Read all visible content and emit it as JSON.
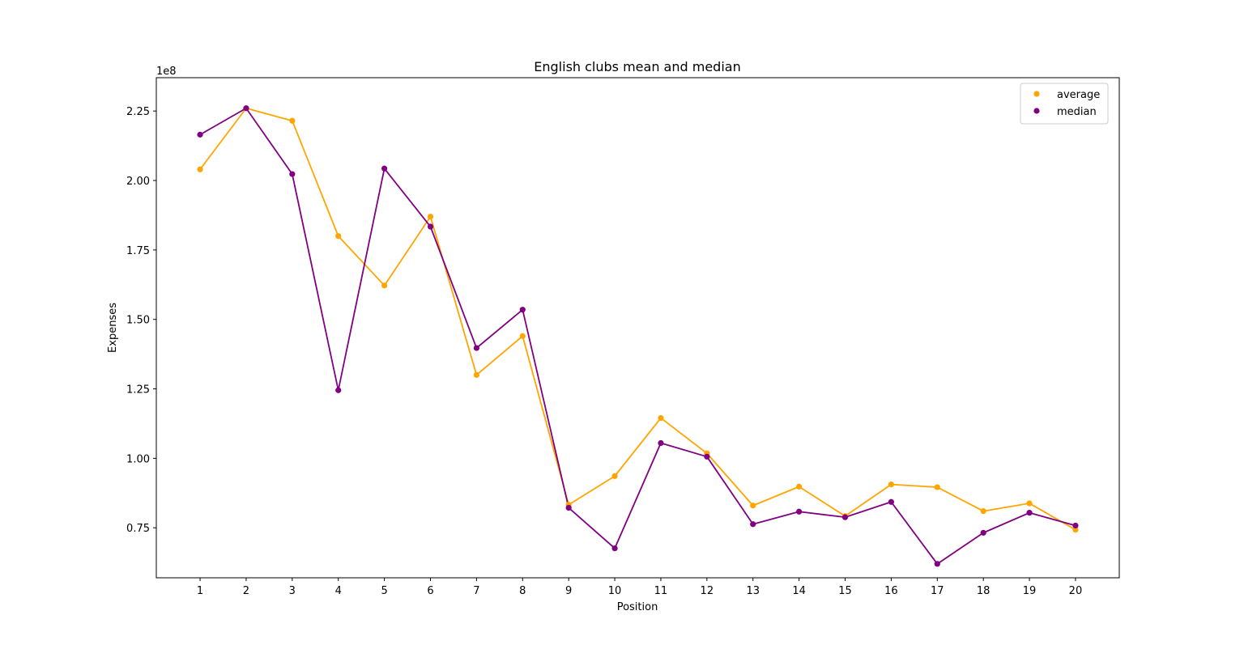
{
  "chart_data": {
    "type": "line",
    "title": "English clubs mean and median",
    "xlabel": "Position",
    "ylabel": "Expenses",
    "y_offset_label": "1e8",
    "x": [
      1,
      2,
      3,
      4,
      5,
      6,
      7,
      8,
      9,
      10,
      11,
      12,
      13,
      14,
      15,
      16,
      17,
      18,
      19,
      20
    ],
    "x_tick_labels": [
      "1",
      "2",
      "3",
      "4",
      "5",
      "6",
      "7",
      "8",
      "9",
      "10",
      "11",
      "12",
      "13",
      "14",
      "15",
      "16",
      "17",
      "18",
      "19",
      "20"
    ],
    "ylim": [
      57000000,
      237000000
    ],
    "y_ticks": [
      75000000,
      100000000,
      125000000,
      150000000,
      175000000,
      200000000,
      225000000
    ],
    "y_tick_labels": [
      "0.75",
      "1.00",
      "1.25",
      "1.50",
      "1.75",
      "2.00",
      "2.25"
    ],
    "grid": false,
    "legend_position": "top-right",
    "series": [
      {
        "name": "average",
        "color": "#ffa500",
        "values": [
          204000000,
          226000000,
          221500000,
          180000000,
          162200000,
          187000000,
          130000000,
          144000000,
          83300000,
          93600000,
          114500000,
          101800000,
          83000000,
          89800000,
          79200000,
          90600000,
          89600000,
          81000000,
          83800000,
          74300000
        ]
      },
      {
        "name": "median",
        "color": "#800080",
        "values": [
          216500000,
          226000000,
          202300000,
          124500000,
          204300000,
          183400000,
          139700000,
          153500000,
          82200000,
          67600000,
          105500000,
          100600000,
          76300000,
          80800000,
          78800000,
          84300000,
          62000000,
          73200000,
          80400000,
          75800000
        ]
      }
    ]
  }
}
